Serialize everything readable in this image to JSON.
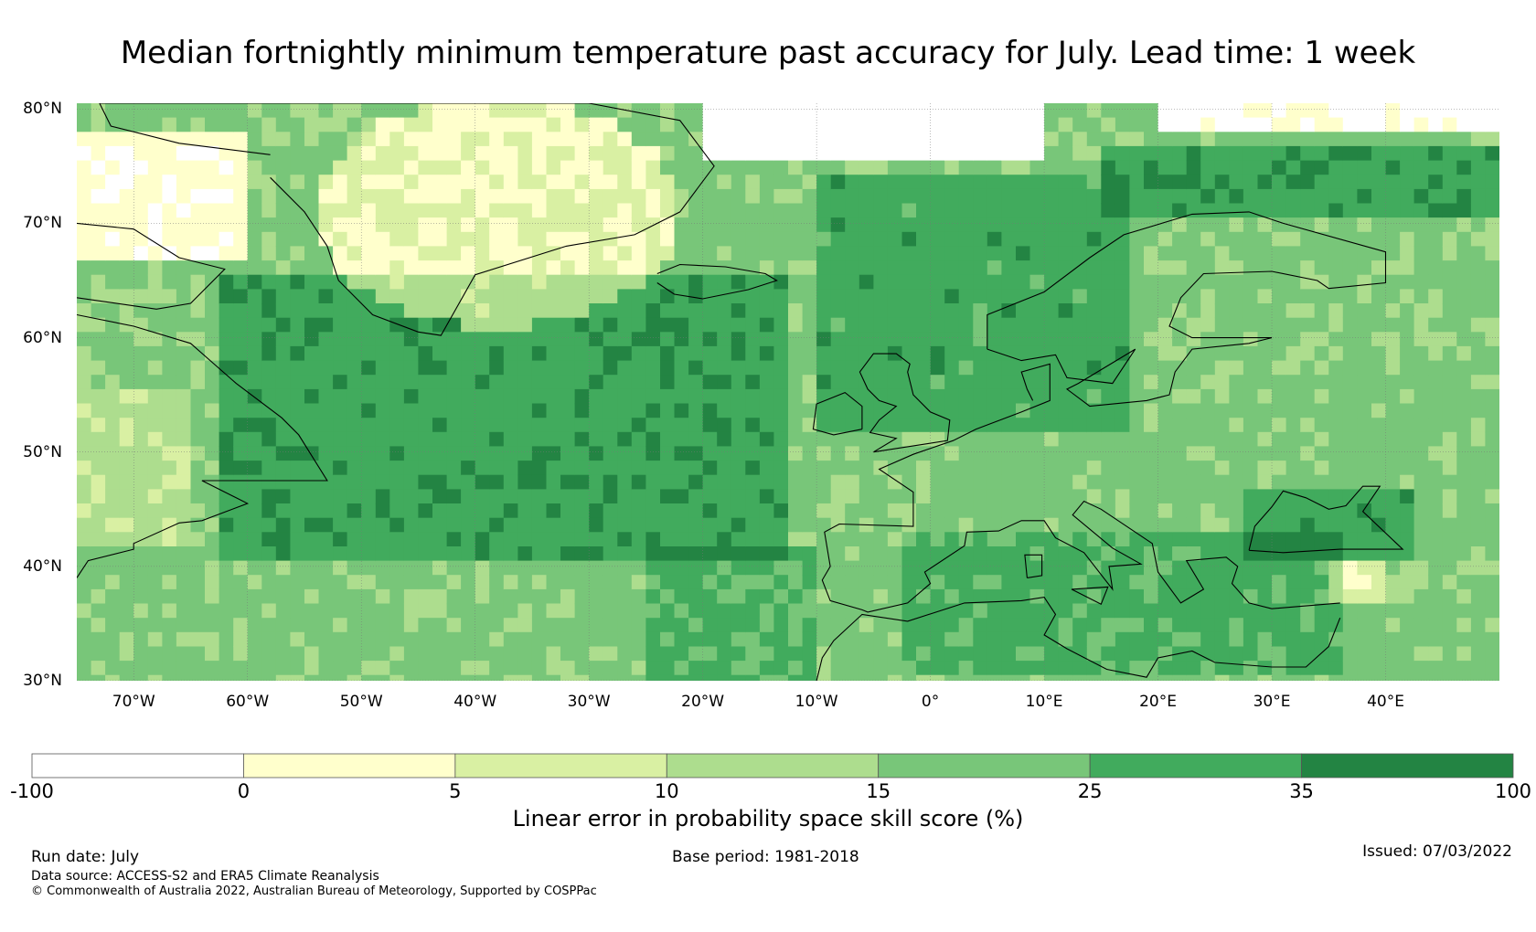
{
  "title": "Median fortnightly minimum temperature past accuracy for July. Lead time: 1 week",
  "map": {
    "lon_range": [
      -75,
      50
    ],
    "lat_range": [
      30,
      80.5
    ],
    "latitude_ticks": [
      {
        "value": 80,
        "label": "80°N"
      },
      {
        "value": 70,
        "label": "70°N"
      },
      {
        "value": 60,
        "label": "60°N"
      },
      {
        "value": 50,
        "label": "50°N"
      },
      {
        "value": 40,
        "label": "40°N"
      },
      {
        "value": 30,
        "label": "30°N"
      }
    ],
    "longitude_ticks": [
      {
        "value": -70,
        "label": "70°W"
      },
      {
        "value": -60,
        "label": "60°W"
      },
      {
        "value": -50,
        "label": "50°W"
      },
      {
        "value": -40,
        "label": "40°W"
      },
      {
        "value": -30,
        "label": "30°W"
      },
      {
        "value": -20,
        "label": "20°W"
      },
      {
        "value": -10,
        "label": "10°W"
      },
      {
        "value": 0,
        "label": "0°"
      },
      {
        "value": 10,
        "label": "10°E"
      },
      {
        "value": 20,
        "label": "20°E"
      },
      {
        "value": 30,
        "label": "30°E"
      },
      {
        "value": 40,
        "label": "40°E"
      }
    ],
    "gridlines": true
  },
  "colorbar": {
    "label": "Linear error in probability space skill score (%)",
    "boundaries": [
      "-100",
      "0",
      "5",
      "10",
      "15",
      "25",
      "35",
      "100"
    ],
    "colors": [
      "#ffffff",
      "#ffffcc",
      "#d9f0a3",
      "#addd8e",
      "#78c679",
      "#41ab5d",
      "#238443"
    ]
  },
  "footer": {
    "run_date": "Run date: July",
    "base_period": "Base period: 1981-2018",
    "issued": "Issued: 07/03/2022",
    "data_source": "Data source: ACCESS-S2 and ERA5 Climate Reanalysis",
    "copyright": "© Commonwealth of Australia 2022, Australian Bureau of Meteorology, Supported by COSPPac"
  }
}
